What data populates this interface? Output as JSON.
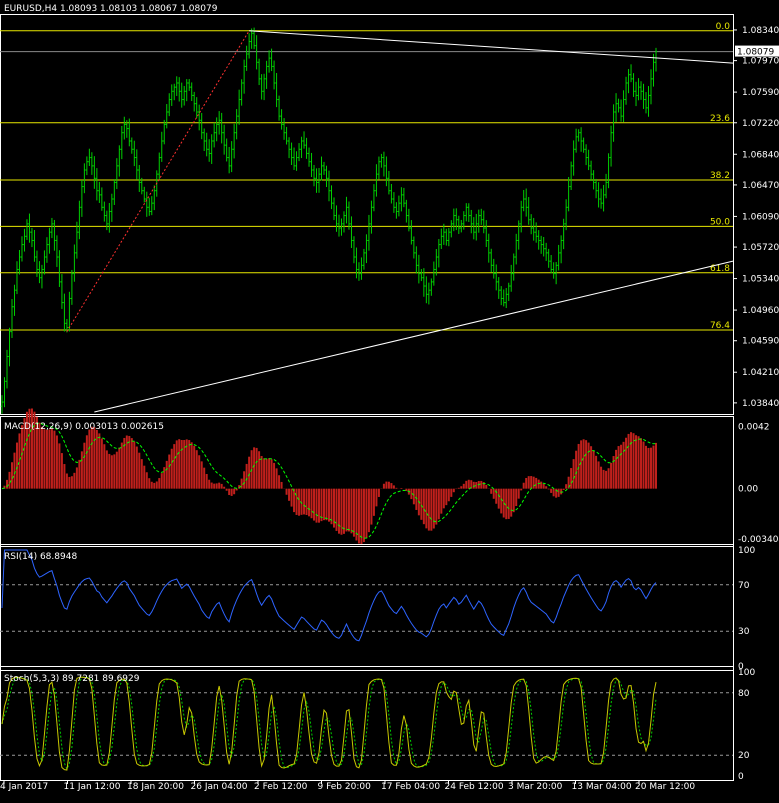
{
  "chart_data": [
    {
      "type": "line",
      "panel": "price",
      "title": "EURUSD,H4  1.08093 1.08103 1.08067 1.08079",
      "symbol": "EURUSD",
      "timeframe": "H4",
      "ohlc_last": {
        "open": 1.08093,
        "high": 1.08103,
        "low": 1.08067,
        "close": 1.08079
      },
      "current_price_label": "1.08079",
      "ylim": [
        1.0373,
        1.0846
      ],
      "y_ticks": [
        "1.08340",
        "1.07970",
        "1.07590",
        "1.07220",
        "1.06840",
        "1.06470",
        "1.06090",
        "1.05720",
        "1.05340",
        "1.04960",
        "1.04590",
        "1.04210",
        "1.03840"
      ],
      "x_ticks": [
        "4 Jan 2017",
        "11 Jan 12:00",
        "18 Jan 20:00",
        "26 Jan 04:00",
        "2 Feb 12:00",
        "9 Feb 20:00",
        "17 Feb 04:00",
        "24 Feb 12:00",
        "3 Mar 20:00",
        "13 Mar 04:00",
        "20 Mar 12:00"
      ],
      "fibonacci_levels": [
        {
          "label": "0.0",
          "price": 1.0833
        },
        {
          "label": "23.6",
          "price": 1.0722
        },
        {
          "label": "38.2",
          "price": 1.0653
        },
        {
          "label": "50.0",
          "price": 1.0597
        },
        {
          "label": "61.8",
          "price": 1.0541
        },
        {
          "label": "76.4",
          "price": 1.0472
        }
      ],
      "close_series": [
        1.0385,
        1.041,
        1.044,
        1.047,
        1.05,
        1.052,
        1.0545,
        1.056,
        1.0575,
        1.0585,
        1.06,
        1.059,
        1.058,
        1.056,
        1.0545,
        1.0535,
        1.0545,
        1.056,
        1.0575,
        1.059,
        1.06,
        1.058,
        1.056,
        1.053,
        1.0505,
        1.048,
        1.0475,
        1.051,
        1.054,
        1.0565,
        1.059,
        1.062,
        1.0645,
        1.0665,
        1.0675,
        1.068,
        1.067,
        1.0655,
        1.064,
        1.0635,
        1.062,
        1.061,
        1.06,
        1.0615,
        1.063,
        1.065,
        1.067,
        1.069,
        1.071,
        1.072,
        1.0715,
        1.07,
        1.069,
        1.068,
        1.0665,
        1.065,
        1.064,
        1.063,
        1.062,
        1.0615,
        1.0625,
        1.064,
        1.066,
        1.068,
        1.07,
        1.072,
        1.0735,
        1.075,
        1.076,
        1.0765,
        1.077,
        1.076,
        1.075,
        1.076,
        1.077,
        1.0765,
        1.0755,
        1.0745,
        1.0735,
        1.0725,
        1.071,
        1.07,
        1.069,
        1.0685,
        1.07,
        1.071,
        1.072,
        1.0725,
        1.071,
        1.0695,
        1.068,
        1.067,
        1.069,
        1.071,
        1.073,
        1.075,
        1.077,
        1.079,
        1.0805,
        1.082,
        1.083,
        1.0815,
        1.0795,
        1.0775,
        1.076,
        1.0775,
        1.079,
        1.08,
        1.079,
        1.077,
        1.075,
        1.073,
        1.072,
        1.071,
        1.07,
        1.069,
        1.068,
        1.067,
        1.068,
        1.069,
        1.07,
        1.0695,
        1.0685,
        1.0675,
        1.0665,
        1.0655,
        1.065,
        1.066,
        1.067,
        1.0665,
        1.0655,
        1.064,
        1.0625,
        1.061,
        1.06,
        1.0595,
        1.06,
        1.061,
        1.062,
        1.06,
        1.058,
        1.056,
        1.0545,
        1.054,
        1.055,
        1.0565,
        1.058,
        1.06,
        1.062,
        1.064,
        1.066,
        1.0675,
        1.068,
        1.067,
        1.0655,
        1.064,
        1.063,
        1.062,
        1.0615,
        1.0625,
        1.0635,
        1.0625,
        1.061,
        1.0595,
        1.058,
        1.0565,
        1.055,
        1.054,
        1.0535,
        1.0525,
        1.0515,
        1.052,
        1.053,
        1.0545,
        1.056,
        1.0575,
        1.0585,
        1.059,
        1.058,
        1.059,
        1.06,
        1.061,
        1.0605,
        1.0595,
        1.06,
        1.061,
        1.062,
        1.061,
        1.06,
        1.059,
        1.06,
        1.061,
        1.0605,
        1.0595,
        1.058,
        1.0565,
        1.055,
        1.054,
        1.053,
        1.052,
        1.051,
        1.0505,
        1.0515,
        1.0525,
        1.054,
        1.056,
        1.058,
        1.06,
        1.062,
        1.063,
        1.062,
        1.0605,
        1.0595,
        1.059,
        1.0585,
        1.058,
        1.0575,
        1.057,
        1.0565,
        1.0555,
        1.0545,
        1.054,
        1.055,
        1.0565,
        1.058,
        1.06,
        1.062,
        1.0645,
        1.067,
        1.069,
        1.0705,
        1.071,
        1.07,
        1.069,
        1.068,
        1.067,
        1.066,
        1.065,
        1.064,
        1.063,
        1.0625,
        1.0635,
        1.065,
        1.068,
        1.071,
        1.0735,
        1.0745,
        1.074,
        1.073,
        1.075,
        1.077,
        1.078,
        1.0775,
        1.076,
        1.0755,
        1.0765,
        1.076,
        1.075,
        1.074,
        1.0755,
        1.0775,
        1.0795,
        1.0808
      ],
      "trendlines": [
        {
          "from": {
            "date": "2 Feb 12:00",
            "price": 1.0833
          },
          "to": {
            "date": "20 Mar 12:00",
            "price": 1.0794
          }
        },
        {
          "from": {
            "date": "11 Jan 12:00",
            "price": 1.0378
          },
          "to": {
            "date": "20 Mar 12:00",
            "price": 1.0555
          }
        }
      ],
      "grid": false
    },
    {
      "type": "line",
      "panel": "macd",
      "title": "MACD(12,26,9) 0.003013 0.002615",
      "macd": 0.003013,
      "signal": 0.002615,
      "ylim": [
        -0.0036,
        0.0045
      ],
      "y_ticks": [
        "0.0042",
        "0.00",
        "-0.003404"
      ]
    },
    {
      "type": "line",
      "panel": "rsi",
      "title": "RSI(14) 68.8948",
      "value": 68.8948,
      "ylim": [
        0,
        100
      ],
      "y_ticks": [
        "100",
        "70",
        "30",
        "0"
      ],
      "levels": [
        70,
        30
      ]
    },
    {
      "type": "line",
      "panel": "stochastic",
      "title": "Stoch(5,3,3) 89.7281 89.6929",
      "main": 89.7281,
      "signal": 89.6929,
      "ylim": [
        0,
        100
      ],
      "y_ticks": [
        "100",
        "80",
        "20",
        "0"
      ],
      "levels": [
        80,
        20
      ]
    }
  ],
  "colors": {
    "background": "#000000",
    "bars": "#00d000",
    "fibo": "#e8e800",
    "trendline": "#ffffff",
    "fibo_base": "#ff3030",
    "macd_hist": "#c0201c",
    "macd_signal": "#00ff00",
    "rsi": "#2e64ff",
    "stoch_main": "#c8c800",
    "stoch_signal": "#00d000",
    "level": "#9a9a9a",
    "price_box": "#ffffff"
  }
}
